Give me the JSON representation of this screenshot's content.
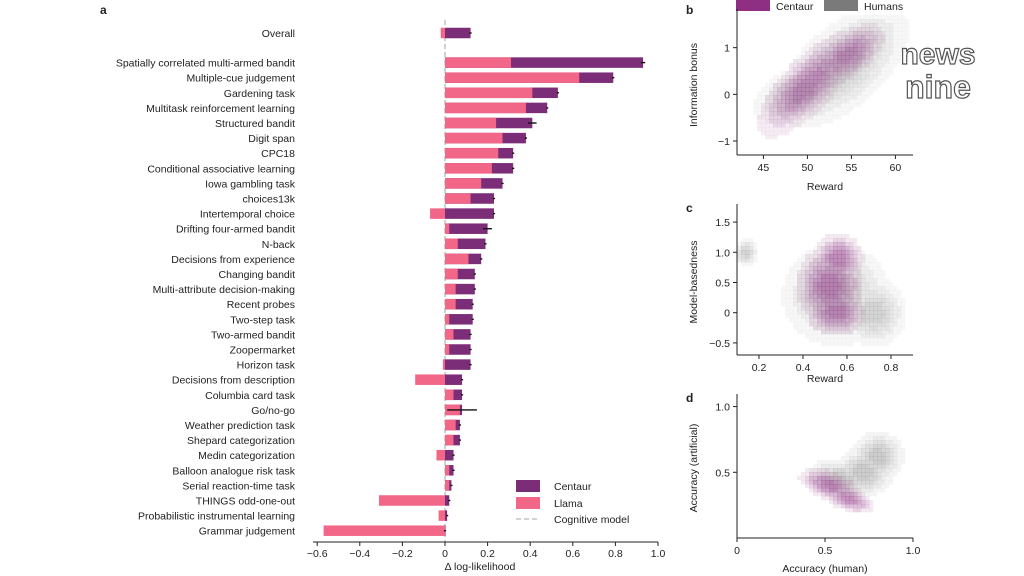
{
  "colors": {
    "centaur": "#7b2d78",
    "llama": "#f26688",
    "humans": "#8c8c8c",
    "centaur_density": "#8f2f84",
    "humans_density": "#6f6f6f",
    "axis": "#222222",
    "cognitive_line": "#b8b8b8"
  },
  "watermark": {
    "text_top": "news",
    "text_bottom": "nine"
  },
  "chart_data": [
    {
      "panel_letter": "a",
      "type": "bar",
      "orientation": "horizontal",
      "xlabel": "Δ log-likelihood",
      "xlim": [
        -0.65,
        1.0
      ],
      "xticks": [
        -0.6,
        -0.4,
        -0.2,
        0,
        0.2,
        0.4,
        0.6,
        0.8,
        1.0
      ],
      "xtick_labels": [
        "−0.6",
        "−0.4",
        "−0.2",
        "0",
        "0.2",
        "0.4",
        "0.6",
        "0.8",
        "1.0"
      ],
      "legend": {
        "position": "bottom-right",
        "entries": [
          {
            "label": "Centaur",
            "kind": "patch",
            "series": "centaur"
          },
          {
            "label": "Llama",
            "kind": "patch",
            "series": "llama"
          },
          {
            "label": "Cognitive model",
            "kind": "dashed-line",
            "series": "cognitive"
          }
        ]
      },
      "categories": [
        "Overall",
        "Spatially correlated multi-armed bandit",
        "Multiple-cue judgement",
        "Gardening task",
        "Multitask reinforcement learning",
        "Structured bandit",
        "Digit span",
        "CPC18",
        "Conditional associative learning",
        "Iowa gambling task",
        "choices13k",
        "Intertemporal choice",
        "Drifting four-armed bandit",
        "N-back",
        "Decisions from experience",
        "Changing bandit",
        "Multi-attribute decision-making",
        "Recent probes",
        "Two-step task",
        "Two-armed bandit",
        "Zoopermarket",
        "Horizon task",
        "Decisions from description",
        "Columbia card task",
        "Go/no-go",
        "Weather prediction task",
        "Shepard categorization",
        "Medin categorization",
        "Balloon analogue risk task",
        "Serial reaction-time task",
        "THINGS odd-one-out",
        "Probabilistic instrumental learning",
        "Grammar judgement"
      ],
      "series": [
        {
          "name": "Centaur",
          "values": [
            0.12,
            0.93,
            0.79,
            0.53,
            0.48,
            0.41,
            0.38,
            0.32,
            0.32,
            0.27,
            0.23,
            0.23,
            0.2,
            0.19,
            0.17,
            0.14,
            0.14,
            0.13,
            0.13,
            0.12,
            0.12,
            0.12,
            0.08,
            0.08,
            0.08,
            0.07,
            0.07,
            0.04,
            0.04,
            0.03,
            0.02,
            0.01,
            0.0
          ],
          "errors": [
            0.0,
            0.01,
            0.0,
            0.0,
            0.0,
            0.02,
            0.0,
            0.0,
            0.0,
            0.0,
            0.0,
            0.0,
            0.02,
            0.0,
            0.0,
            0.0,
            0.0,
            0.0,
            0.0,
            0.0,
            0.0,
            0.0,
            0.0,
            0.0,
            0.07,
            0.0,
            0.0,
            0.0,
            0.0,
            0.0,
            0.0,
            0.0,
            0.0
          ]
        },
        {
          "name": "Llama",
          "values": [
            -0.02,
            0.31,
            0.63,
            0.41,
            0.38,
            0.24,
            0.27,
            0.25,
            0.22,
            0.17,
            0.12,
            -0.07,
            0.02,
            0.06,
            0.11,
            0.06,
            0.05,
            0.05,
            0.02,
            0.04,
            0.02,
            -0.01,
            -0.14,
            0.04,
            0.07,
            0.05,
            0.04,
            -0.04,
            0.02,
            0.02,
            -0.31,
            -0.03,
            -0.57
          ]
        }
      ]
    },
    {
      "panel_letter": "b",
      "type": "density",
      "xlabel": "Reward",
      "ylabel": "Information bonus",
      "xlim": [
        42,
        62
      ],
      "ylim": [
        -1.3,
        1.7
      ],
      "xticks": [
        45,
        50,
        55,
        60
      ],
      "yticks": [
        -1,
        0,
        1
      ],
      "xtick_labels": [
        "45",
        "50",
        "55",
        "60"
      ],
      "ytick_labels": [
        "−1",
        "0",
        "1"
      ],
      "legend_entries": [
        "Centaur",
        "Humans"
      ],
      "humans_peaks": [
        {
          "x": 49.5,
          "y": 0.05,
          "sx": 3.0,
          "sy": 0.35,
          "rho": 0.45
        },
        {
          "x": 54.0,
          "y": 0.6,
          "sx": 4.0,
          "sy": 0.7,
          "rho": 0.6
        }
      ],
      "centaur_peaks": [
        {
          "x": 54.5,
          "y": 0.85,
          "sx": 2.2,
          "sy": 0.35,
          "rho": 0.6
        },
        {
          "x": 50.0,
          "y": 0.2,
          "sx": 3.0,
          "sy": 0.6,
          "rho": 0.75
        }
      ]
    },
    {
      "panel_letter": "c",
      "type": "density",
      "xlabel": "Reward",
      "ylabel": "Model-basedness",
      "xlim": [
        0.1,
        0.9
      ],
      "ylim": [
        -0.7,
        1.7
      ],
      "xticks": [
        0.2,
        0.4,
        0.6,
        0.8
      ],
      "yticks": [
        -0.5,
        0,
        0.5,
        1.0,
        1.5
      ],
      "xtick_labels": [
        "0.2",
        "0.4",
        "0.6",
        "0.8"
      ],
      "ytick_labels": [
        "−0.5",
        "0",
        "0.5",
        "1.0",
        "1.5"
      ],
      "humans_peaks": [
        {
          "x": 0.55,
          "y": 0.3,
          "sx": 0.13,
          "sy": 0.45,
          "rho": 0.0
        },
        {
          "x": 0.72,
          "y": 0.0,
          "sx": 0.08,
          "sy": 0.3,
          "rho": 0.0
        },
        {
          "x": 0.14,
          "y": 1.0,
          "sx": 0.03,
          "sy": 0.12,
          "rho": 0.0
        }
      ],
      "centaur_peaks": [
        {
          "x": 0.55,
          "y": 0.0,
          "sx": 0.07,
          "sy": 0.2,
          "rho": 0.0
        },
        {
          "x": 0.56,
          "y": 0.9,
          "sx": 0.06,
          "sy": 0.22,
          "rho": 0.0
        },
        {
          "x": 0.52,
          "y": 0.45,
          "sx": 0.08,
          "sy": 0.35,
          "rho": 0.0
        }
      ]
    },
    {
      "panel_letter": "d",
      "type": "density",
      "xlabel": "Accuracy (human)",
      "ylabel": "Accuracy (artificial)",
      "xlim": [
        0.0,
        1.0
      ],
      "ylim": [
        0.0,
        1.05
      ],
      "xticks": [
        0,
        0.5,
        1.0
      ],
      "yticks": [
        0.5,
        1.0
      ],
      "xtick_labels": [
        "0",
        "0.5",
        "1.0"
      ],
      "ytick_labels": [
        "0.5",
        "1.0"
      ],
      "humans_peaks": [
        {
          "x": 0.72,
          "y": 0.5,
          "sx": 0.09,
          "sy": 0.1,
          "rho": 0.0
        },
        {
          "x": 0.8,
          "y": 0.62,
          "sx": 0.08,
          "sy": 0.1,
          "rho": 0.0
        },
        {
          "x": 0.6,
          "y": 0.45,
          "sx": 0.1,
          "sy": 0.08,
          "rho": -0.3
        }
      ],
      "centaur_peaks": [
        {
          "x": 0.63,
          "y": 0.3,
          "sx": 0.08,
          "sy": 0.06,
          "rho": -0.5
        },
        {
          "x": 0.52,
          "y": 0.4,
          "sx": 0.09,
          "sy": 0.07,
          "rho": -0.5
        }
      ]
    }
  ]
}
